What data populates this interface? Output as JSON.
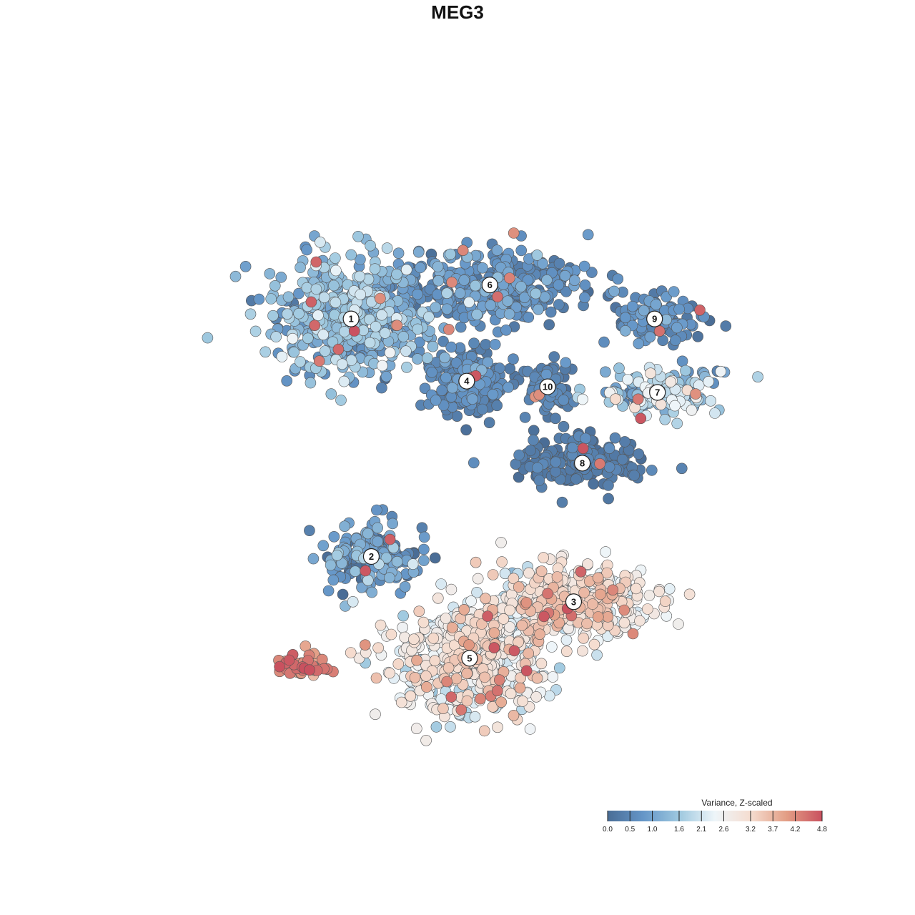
{
  "chart_data": {
    "type": "scatter",
    "title": "MEG3",
    "xlabel": "",
    "ylabel": "",
    "axes_visible": false,
    "grid": false,
    "point_color_scale": {
      "name": "Variance, Z-scaled",
      "min": 0.0,
      "max": 4.8,
      "tick_labels": [
        "0.0",
        "0.5",
        "1.0",
        "1.6",
        "2.1",
        "2.6",
        "3.2",
        "3.7",
        "4.2",
        "4.8"
      ],
      "colors": [
        "#4a6d96",
        "#6596c8",
        "#9ec8df",
        "#eef5f9",
        "#f5ddd0",
        "#e39e85",
        "#c9515f"
      ],
      "placement": "bottom-right"
    },
    "clusters": [
      {
        "label": "1",
        "center": [
          -4.3,
          4.4
        ],
        "spread": [
          2.8,
          2.2
        ],
        "n": 480,
        "mean": 1.25,
        "sd": 0.45
      },
      {
        "label": "6",
        "center": [
          0.5,
          5.6
        ],
        "spread": [
          3.3,
          1.3
        ],
        "n": 320,
        "mean": 0.65,
        "sd": 0.35
      },
      {
        "label": "4",
        "center": [
          -0.3,
          2.2
        ],
        "spread": [
          1.3,
          1.2
        ],
        "n": 230,
        "mean": 0.5,
        "sd": 0.25
      },
      {
        "label": "10",
        "center": [
          2.5,
          2.0
        ],
        "spread": [
          0.9,
          1.1
        ],
        "n": 80,
        "mean": 0.35,
        "sd": 0.2
      },
      {
        "label": "9",
        "center": [
          6.2,
          4.4
        ],
        "spread": [
          1.6,
          0.9
        ],
        "n": 110,
        "mean": 0.55,
        "sd": 0.3
      },
      {
        "label": "7",
        "center": [
          6.3,
          1.8
        ],
        "spread": [
          2.2,
          0.8
        ],
        "n": 150,
        "mean": 1.7,
        "sd": 0.65
      },
      {
        "label": "8",
        "center": [
          3.7,
          -0.7
        ],
        "spread": [
          2.2,
          0.9
        ],
        "n": 170,
        "mean": 0.25,
        "sd": 0.2
      },
      {
        "label": "2",
        "center": [
          -3.6,
          -4.0
        ],
        "spread": [
          1.6,
          1.2
        ],
        "n": 170,
        "mean": 0.75,
        "sd": 0.55
      },
      {
        "label": "3",
        "center": [
          3.4,
          -5.6
        ],
        "spread": [
          2.6,
          1.3
        ],
        "n": 420,
        "mean": 2.85,
        "sd": 0.55
      },
      {
        "label": "5",
        "center": [
          -0.2,
          -7.6
        ],
        "spread": [
          2.6,
          1.9
        ],
        "n": 540,
        "mean": 2.65,
        "sd": 0.55
      },
      {
        "label": "",
        "center": [
          -6.0,
          -7.8
        ],
        "spread": [
          0.9,
          0.4
        ],
        "n": 45,
        "mean": 4.2,
        "sd": 0.35
      }
    ],
    "xlim": [
      -11.5,
      11.5
    ],
    "ylim": [
      -12.0,
      11.0
    ]
  }
}
